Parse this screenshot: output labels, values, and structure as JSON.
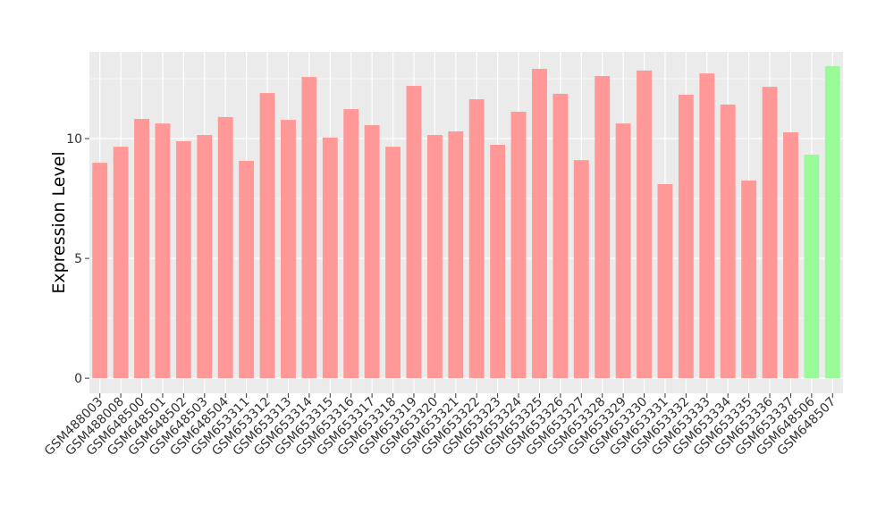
{
  "chart_data": {
    "type": "bar",
    "y_label": "Expression Level",
    "categories": [
      "GSM488003",
      "GSM488008",
      "GSM648500",
      "GSM648501",
      "GSM648502",
      "GSM648503",
      "GSM648504",
      "GSM653311",
      "GSM653312",
      "GSM653313",
      "GSM653314",
      "GSM653315",
      "GSM653316",
      "GSM653317",
      "GSM653318",
      "GSM653319",
      "GSM653320",
      "GSM653321",
      "GSM653322",
      "GSM653323",
      "GSM653324",
      "GSM653325",
      "GSM653326",
      "GSM653327",
      "GSM653328",
      "GSM653329",
      "GSM653330",
      "GSM653331",
      "GSM653332",
      "GSM653333",
      "GSM653334",
      "GSM653335",
      "GSM653336",
      "GSM653337",
      "GSM648506",
      "GSM648507"
    ],
    "values": [
      8.99,
      9.66,
      10.82,
      10.63,
      9.89,
      10.15,
      10.9,
      9.07,
      11.9,
      10.78,
      12.57,
      10.04,
      11.23,
      10.56,
      9.66,
      12.2,
      10.15,
      10.3,
      11.64,
      9.74,
      11.12,
      12.91,
      11.87,
      9.1,
      12.61,
      10.63,
      12.84,
      8.1,
      11.83,
      12.72,
      11.42,
      8.25,
      12.16,
      10.26,
      9.33,
      13.02
    ],
    "colors": [
      "#ff9896",
      "#ff9896",
      "#ff9896",
      "#ff9896",
      "#ff9896",
      "#ff9896",
      "#ff9896",
      "#ff9896",
      "#ff9896",
      "#ff9896",
      "#ff9896",
      "#ff9896",
      "#ff9896",
      "#ff9896",
      "#ff9896",
      "#ff9896",
      "#ff9896",
      "#ff9896",
      "#ff9896",
      "#ff9896",
      "#ff9896",
      "#ff9896",
      "#ff9896",
      "#ff9896",
      "#ff9896",
      "#ff9896",
      "#ff9896",
      "#ff9896",
      "#ff9896",
      "#ff9896",
      "#ff9896",
      "#ff9896",
      "#ff9896",
      "#ff9896",
      "#98fb98",
      "#98fb98"
    ],
    "ylim": [
      -0.63,
      13.62
    ],
    "yticks": [
      0,
      5,
      10
    ],
    "minor_grid": [
      2.5,
      7.5,
      12.5
    ],
    "grid": true
  }
}
